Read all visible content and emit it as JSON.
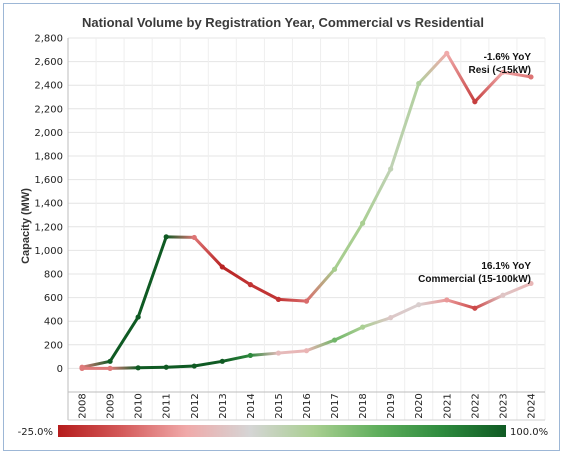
{
  "chart_data": {
    "type": "line",
    "title": "National Volume by Registration Year, Commercial vs Residential",
    "xlabel": "",
    "ylabel": "Capacity (MW)",
    "x": [
      2008,
      2009,
      2010,
      2011,
      2012,
      2013,
      2014,
      2015,
      2016,
      2017,
      2018,
      2019,
      2020,
      2021,
      2022,
      2023,
      2024
    ],
    "ylim": [
      -200,
      2800
    ],
    "yticks": [
      "0",
      "200",
      "400",
      "600",
      "800",
      "1,000",
      "1,200",
      "1,400",
      "1,600",
      "1,800",
      "2,000",
      "2,200",
      "2,400",
      "2,600",
      "2,800"
    ],
    "grid": true,
    "series": [
      {
        "name": "Resi (<15kW)",
        "values": [
          10,
          60,
          435,
          1115,
          1110,
          860,
          710,
          585,
          570,
          840,
          1230,
          1690,
          2415,
          2670,
          2260,
          2510,
          2470
        ],
        "yoy": [
          0.0,
          1.0,
          1.0,
          1.0,
          -0.01,
          -0.23,
          -0.18,
          -0.18,
          -0.03,
          0.47,
          0.46,
          0.37,
          0.43,
          0.11,
          -0.15,
          0.11,
          -0.016
        ],
        "annotation": [
          "-1.6% YoY",
          "Resi (<15kW)"
        ]
      },
      {
        "name": "Commercial (15-100kW)",
        "values": [
          0,
          0,
          5,
          10,
          20,
          60,
          110,
          130,
          150,
          240,
          350,
          430,
          540,
          580,
          510,
          620,
          720
        ],
        "yoy": [
          0.0,
          0.0,
          1.0,
          1.0,
          1.0,
          1.0,
          0.83,
          0.18,
          0.15,
          0.6,
          0.46,
          0.23,
          0.26,
          0.07,
          -0.12,
          0.22,
          0.161
        ],
        "annotation": [
          "16.1% YoY",
          "Commercial (15-100kW)"
        ]
      }
    ],
    "color_legend": {
      "min_label": "-25.0%",
      "max_label": "100.0%",
      "min_value": -0.25,
      "max_value": 1.0,
      "stops": [
        "#b51c1c",
        "#d45a5a",
        "#f0a9a9",
        "#d5d5d5",
        "#a9cf91",
        "#5fae5c",
        "#2e8b3e",
        "#0f5a23"
      ]
    }
  }
}
